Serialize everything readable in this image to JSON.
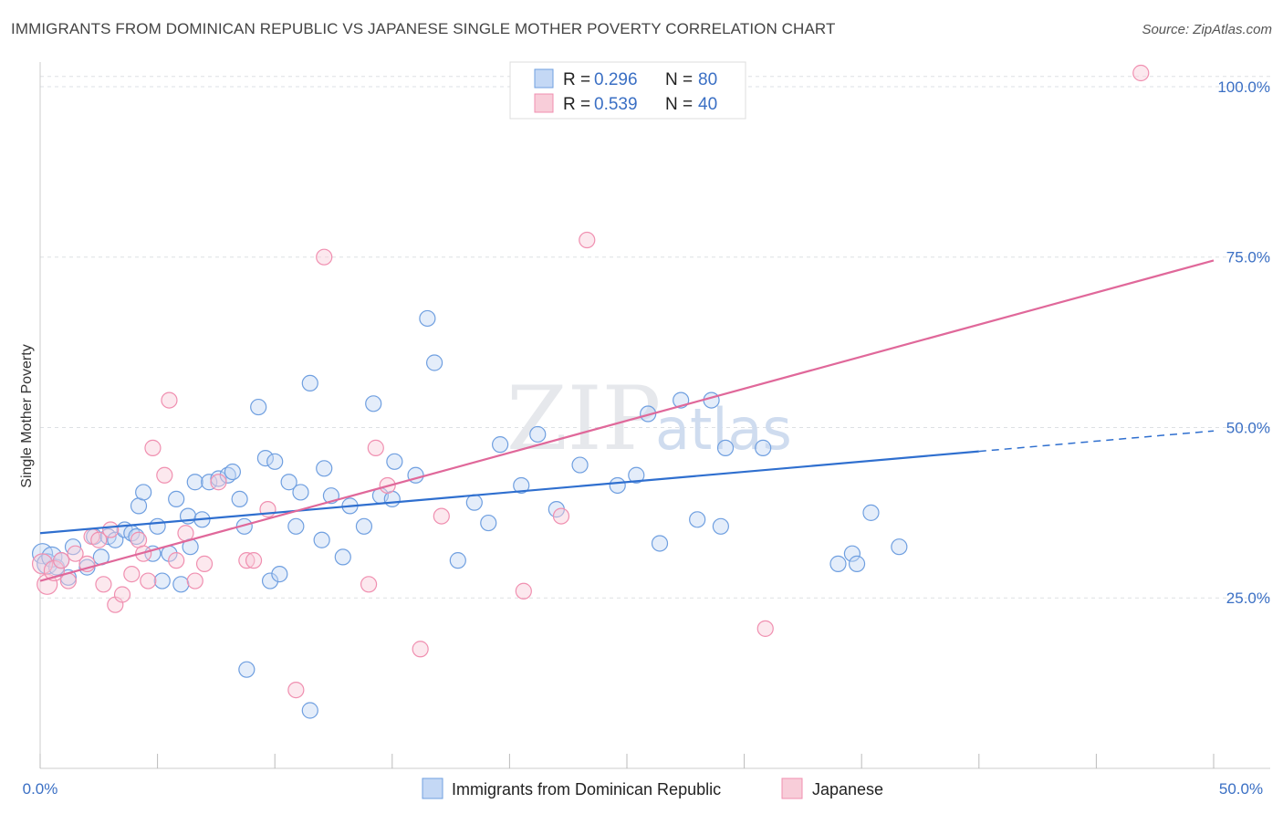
{
  "header": {
    "title": "IMMIGRANTS FROM DOMINICAN REPUBLIC VS JAPANESE SINGLE MOTHER POVERTY CORRELATION CHART",
    "source": "Source: ZipAtlas.com"
  },
  "watermark": {
    "zip": "ZIP",
    "atlas": "atlas"
  },
  "chart_data": {
    "type": "scatter",
    "title": "IMMIGRANTS FROM DOMINICAN REPUBLIC VS JAPANESE SINGLE MOTHER POVERTY CORRELATION CHART",
    "xlabel": "",
    "ylabel": "Single Mother Poverty",
    "xlim": [
      0,
      50
    ],
    "ylim": [
      0,
      102
    ],
    "x_tick_labels": [
      "0.0%",
      "50.0%"
    ],
    "y_ticks": [
      25,
      50,
      75,
      100
    ],
    "y_tick_labels": [
      "25.0%",
      "50.0%",
      "75.0%",
      "100.0%"
    ],
    "grid": true,
    "legend_position": "top-center",
    "colors": {
      "blue": "#6f9fe0",
      "pink": "#f08fb0",
      "blue_line": "#2f6fcf",
      "pink_line": "#e0689a"
    },
    "legend": [
      {
        "r_label": "R =",
        "r_value": "0.296",
        "n_label": "N =",
        "n_value": "80"
      },
      {
        "r_label": "R =",
        "r_value": "0.539",
        "n_label": "N =",
        "n_value": "40"
      }
    ],
    "series": [
      {
        "name": "Immigrants from Dominican Republic",
        "color": "#6f9fe0",
        "trend": {
          "x0": 0,
          "y0": 34.5,
          "x1": 40,
          "y1": 46.5,
          "dash_to_x": 50,
          "dash_to_y": 49.5
        },
        "points": [
          [
            0.1,
            31.5
          ],
          [
            0.3,
            30
          ],
          [
            0.5,
            31
          ],
          [
            0.7,
            29.5
          ],
          [
            0.9,
            30.5
          ],
          [
            1.2,
            28
          ],
          [
            1.4,
            32.5
          ],
          [
            2,
            29.5
          ],
          [
            2.3,
            34
          ],
          [
            2.6,
            31
          ],
          [
            2.9,
            34
          ],
          [
            3.2,
            33.5
          ],
          [
            3.6,
            35
          ],
          [
            3.9,
            34.5
          ],
          [
            4.1,
            34
          ],
          [
            4.2,
            38.5
          ],
          [
            4.4,
            40.5
          ],
          [
            4.8,
            31.5
          ],
          [
            5.0,
            35.5
          ],
          [
            5.2,
            27.5
          ],
          [
            5.5,
            31.5
          ],
          [
            5.8,
            39.5
          ],
          [
            6.0,
            27
          ],
          [
            6.3,
            37
          ],
          [
            6.4,
            32.5
          ],
          [
            6.6,
            42
          ],
          [
            6.9,
            36.5
          ],
          [
            7.2,
            42
          ],
          [
            7.6,
            42.5
          ],
          [
            8.0,
            43
          ],
          [
            8.2,
            43.5
          ],
          [
            8.5,
            39.5
          ],
          [
            8.7,
            35.5
          ],
          [
            8.8,
            14.5
          ],
          [
            9.3,
            53
          ],
          [
            9.6,
            45.5
          ],
          [
            9.8,
            27.5
          ],
          [
            10.0,
            45
          ],
          [
            10.2,
            28.5
          ],
          [
            10.6,
            42
          ],
          [
            10.9,
            35.5
          ],
          [
            11.1,
            40.5
          ],
          [
            11.5,
            8.5
          ],
          [
            11.5,
            56.5
          ],
          [
            12.0,
            33.5
          ],
          [
            12.1,
            44
          ],
          [
            12.4,
            40
          ],
          [
            12.9,
            31
          ],
          [
            13.2,
            38.5
          ],
          [
            13.8,
            35.5
          ],
          [
            14.2,
            53.5
          ],
          [
            14.5,
            40
          ],
          [
            15.0,
            39.5
          ],
          [
            15.1,
            45
          ],
          [
            16.0,
            43
          ],
          [
            16.5,
            66
          ],
          [
            16.8,
            59.5
          ],
          [
            17.8,
            30.5
          ],
          [
            18.5,
            39
          ],
          [
            19.1,
            36
          ],
          [
            19.6,
            47.5
          ],
          [
            20.5,
            41.5
          ],
          [
            21.2,
            49
          ],
          [
            22.0,
            38
          ],
          [
            23.0,
            44.5
          ],
          [
            24.6,
            41.5
          ],
          [
            25.4,
            43
          ],
          [
            25.9,
            52
          ],
          [
            26.4,
            33
          ],
          [
            27.3,
            54
          ],
          [
            28.0,
            36.5
          ],
          [
            28.6,
            54
          ],
          [
            29.0,
            35.5
          ],
          [
            29.2,
            47
          ],
          [
            30.8,
            47
          ],
          [
            34.0,
            30
          ],
          [
            34.6,
            31.5
          ],
          [
            34.8,
            30
          ],
          [
            35.4,
            37.5
          ],
          [
            36.6,
            32.5
          ]
        ]
      },
      {
        "name": "Japanese",
        "color": "#f08fb0",
        "trend": {
          "x0": 0,
          "y0": 27.5,
          "x1": 50,
          "y1": 74.5
        },
        "points": [
          [
            0.1,
            30
          ],
          [
            0.3,
            27
          ],
          [
            0.6,
            29
          ],
          [
            0.9,
            30.5
          ],
          [
            1.2,
            27.5
          ],
          [
            1.5,
            31.5
          ],
          [
            2.0,
            30
          ],
          [
            2.2,
            34
          ],
          [
            2.5,
            33.5
          ],
          [
            2.7,
            27
          ],
          [
            3.0,
            35
          ],
          [
            3.2,
            24
          ],
          [
            3.5,
            25.5
          ],
          [
            3.9,
            28.5
          ],
          [
            4.2,
            33.5
          ],
          [
            4.4,
            31.5
          ],
          [
            4.6,
            27.5
          ],
          [
            4.8,
            47
          ],
          [
            5.3,
            43
          ],
          [
            5.5,
            54
          ],
          [
            5.8,
            30.5
          ],
          [
            6.2,
            34.5
          ],
          [
            6.6,
            27.5
          ],
          [
            7.0,
            30
          ],
          [
            7.6,
            42
          ],
          [
            8.8,
            30.5
          ],
          [
            9.1,
            30.5
          ],
          [
            9.7,
            38
          ],
          [
            10.9,
            11.5
          ],
          [
            12.1,
            75
          ],
          [
            14.0,
            27
          ],
          [
            14.3,
            47
          ],
          [
            14.8,
            41.5
          ],
          [
            16.2,
            17.5
          ],
          [
            17.1,
            37
          ],
          [
            20.6,
            26
          ],
          [
            22.2,
            37
          ],
          [
            23.3,
            77.5
          ],
          [
            30.9,
            20.5
          ],
          [
            46.9,
            102
          ]
        ]
      }
    ]
  },
  "bottom_legend": {
    "blue_label": "Immigrants from Dominican Republic",
    "pink_label": "Japanese"
  }
}
